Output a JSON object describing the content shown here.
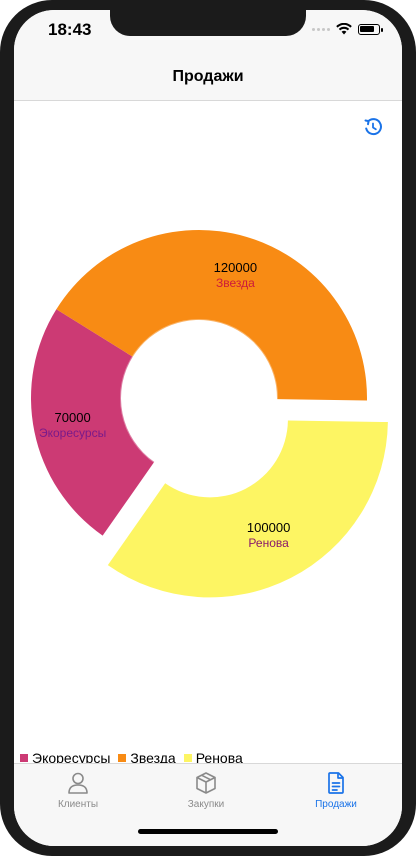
{
  "status_bar": {
    "time": "18:43"
  },
  "nav": {
    "title": "Продажи"
  },
  "colors": {
    "accent": "#1a73e8",
    "ecoresources": "#cc3a74",
    "zvezda": "#f88b14",
    "renova": "#fdf563"
  },
  "chart_data": {
    "type": "pie",
    "variant": "donut",
    "title": "",
    "series": [
      {
        "name": "Экоресурсы",
        "value": 70000,
        "color": "#cc3a74",
        "label_color": "#7a1a8a"
      },
      {
        "name": "Звезда",
        "value": 120000,
        "color": "#f88b14",
        "label_color": "#cc1a3a"
      },
      {
        "name": "Ренова",
        "value": 100000,
        "color": "#fdf563",
        "label_color": "#8a1a6a",
        "selected": true
      }
    ],
    "legend_position": "bottom-left"
  },
  "legend": {
    "items": [
      {
        "label": "Экоресурсы",
        "color": "#cc3a74"
      },
      {
        "label": "Звезда",
        "color": "#f88b14"
      },
      {
        "label": "Ренова",
        "color": "#fdf563"
      }
    ]
  },
  "tabs": [
    {
      "label": "Клиенты",
      "icon": "person-icon",
      "active": false
    },
    {
      "label": "Закупки",
      "icon": "box-icon",
      "active": false
    },
    {
      "label": "Продажи",
      "icon": "document-icon",
      "active": true
    }
  ]
}
